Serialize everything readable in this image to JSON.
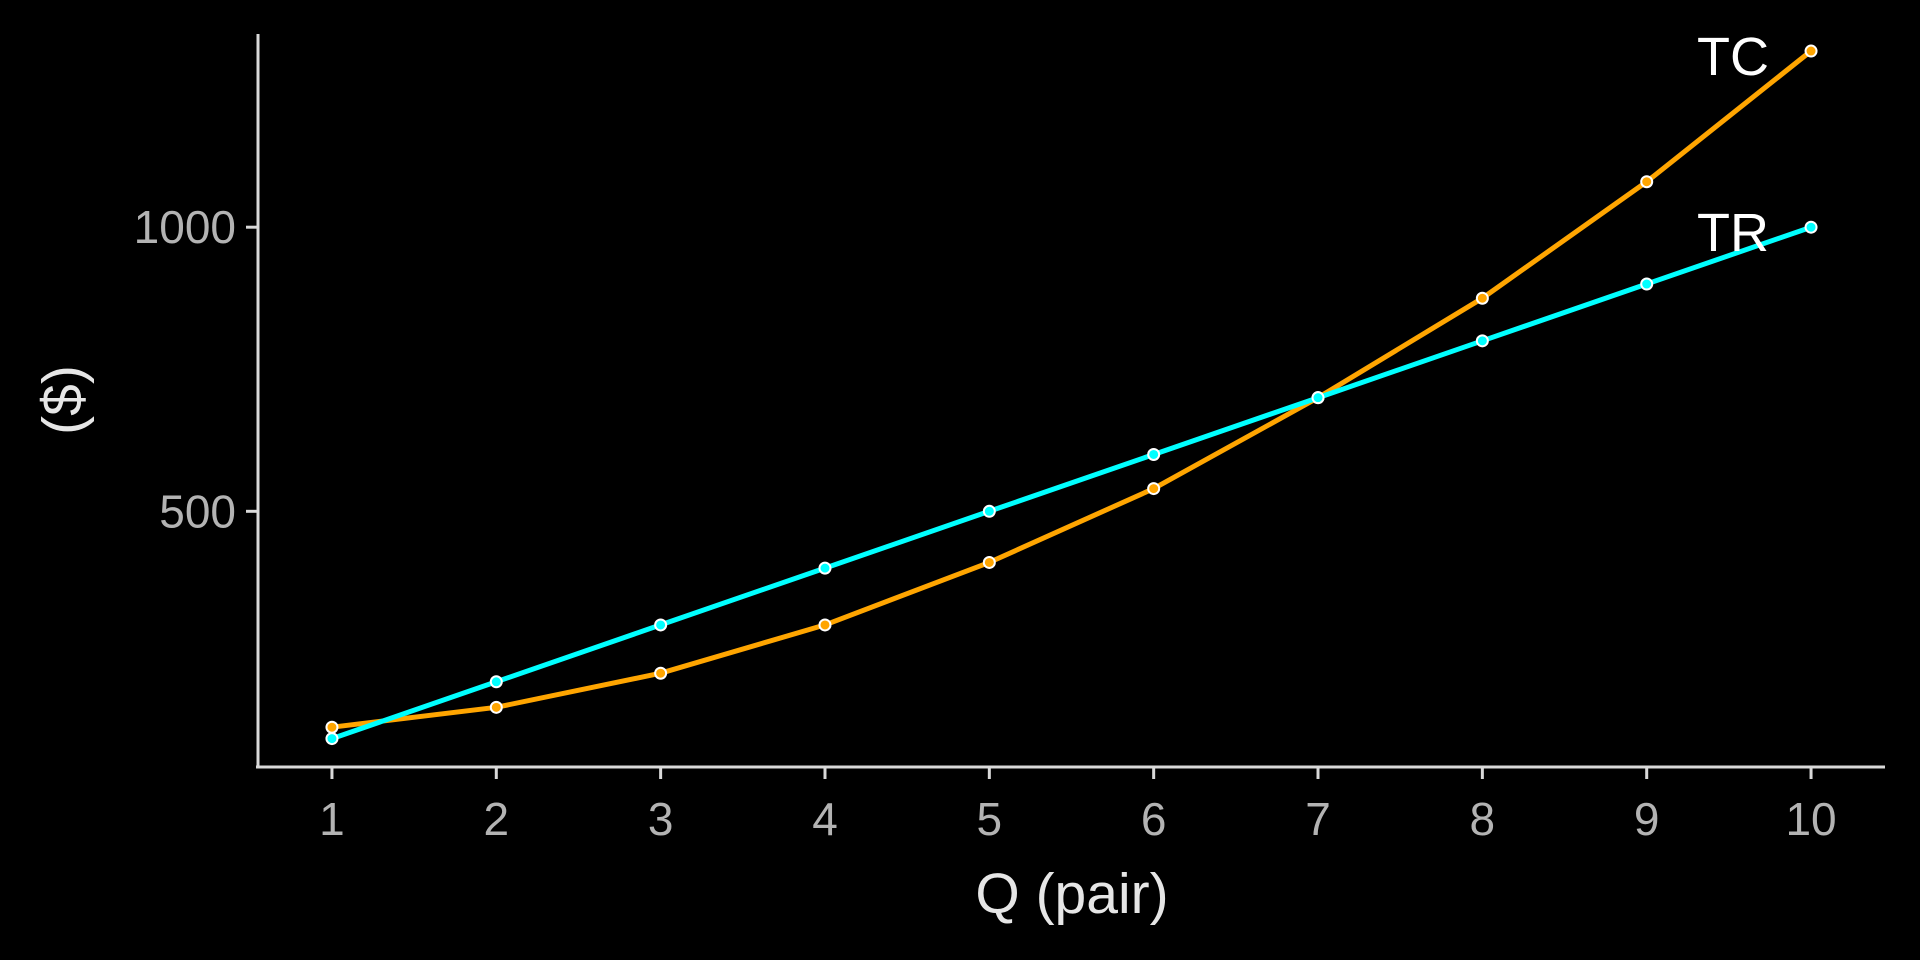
{
  "chart_data": {
    "type": "line",
    "title": "",
    "xlabel": "Q (pair)",
    "ylabel": "($)",
    "x": [
      1,
      2,
      3,
      4,
      5,
      6,
      7,
      8,
      9,
      10
    ],
    "xlim": [
      0.55,
      10.45
    ],
    "ylim": [
      50,
      1340
    ],
    "x_ticks": [
      "1",
      "2",
      "3",
      "4",
      "5",
      "6",
      "7",
      "8",
      "9",
      "10"
    ],
    "y_ticks": [
      {
        "value": 500,
        "label": "500"
      },
      {
        "value": 1000,
        "label": "1000"
      }
    ],
    "grid": false,
    "legend": "none",
    "series": [
      {
        "name": "TC",
        "color": "#FFA500",
        "values": [
          120,
          155,
          215,
          300,
          410,
          540,
          700,
          875,
          1080,
          1310
        ]
      },
      {
        "name": "TR",
        "color": "#00FFFF",
        "values": [
          100,
          200,
          300,
          400,
          500,
          600,
          700,
          800,
          900,
          1000
        ]
      }
    ]
  }
}
